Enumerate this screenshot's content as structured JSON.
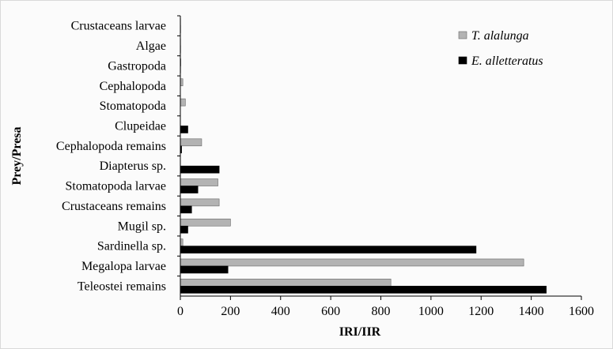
{
  "chart_data": {
    "type": "bar",
    "orientation": "horizontal",
    "title": "",
    "xlabel": "IRI/IIR",
    "ylabel": "Prey/Presa",
    "xlim": [
      0,
      1600
    ],
    "xticks": [
      0,
      200,
      400,
      600,
      800,
      1000,
      1200,
      1400,
      1600
    ],
    "grid": false,
    "legend_position": "top-right",
    "categories": [
      "Crustaceans larvae",
      "Algae",
      "Gastropoda",
      "Cephalopoda",
      "Stomatopoda",
      "Clupeidae",
      "Cephalopoda remains",
      "Diapterus sp.",
      "Stomatopoda larvae",
      "Crustaceans remains",
      "Mugil sp.",
      "Sardinella sp.",
      "Megalopa larvae",
      "Teleostei remains"
    ],
    "series": [
      {
        "name": "T. alalunga",
        "color": "#b3b3b3",
        "values": [
          1,
          1,
          2,
          10,
          20,
          0,
          85,
          0,
          150,
          155,
          200,
          10,
          1370,
          840
        ]
      },
      {
        "name": "E. alletteratus",
        "color": "#000000",
        "values": [
          1,
          1,
          1,
          0,
          0,
          30,
          5,
          155,
          70,
          45,
          30,
          1180,
          190,
          1460
        ]
      }
    ]
  }
}
